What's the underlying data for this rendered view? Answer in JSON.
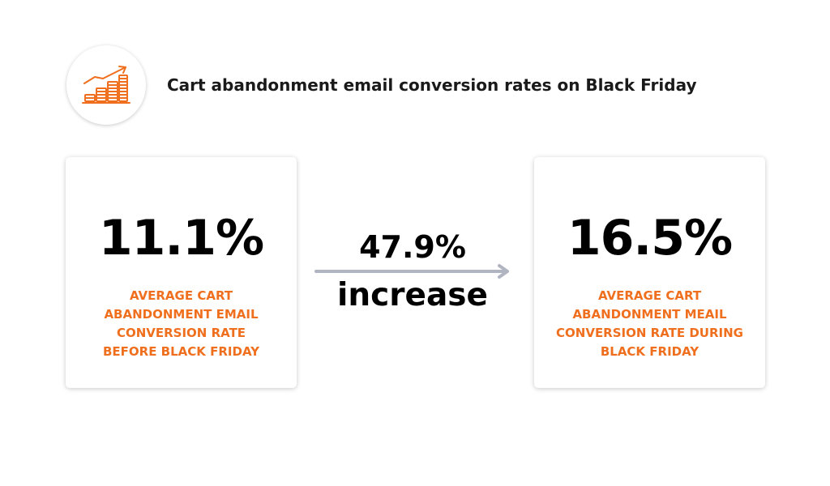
{
  "header": {
    "title": "Cart abandonment email conversion rates on Black Friday",
    "icon": "growth-coins-icon",
    "accent_color": "#ef6f1e"
  },
  "before": {
    "value": "11.1%",
    "caption_lines": [
      "AVERAGE CART",
      "ABANDONMENT EMAIL",
      "CONVERSION RATE",
      "BEFORE BLACK FRIDAY"
    ]
  },
  "change": {
    "value": "47.9%",
    "label": "increase",
    "arrow_color": "#b1b4c1"
  },
  "during": {
    "value": "16.5%",
    "caption_lines": [
      "AVERAGE CART",
      "ABANDONMENT MEAIL",
      "CONVERSION RATE DURING",
      "BLACK FRIDAY"
    ]
  }
}
